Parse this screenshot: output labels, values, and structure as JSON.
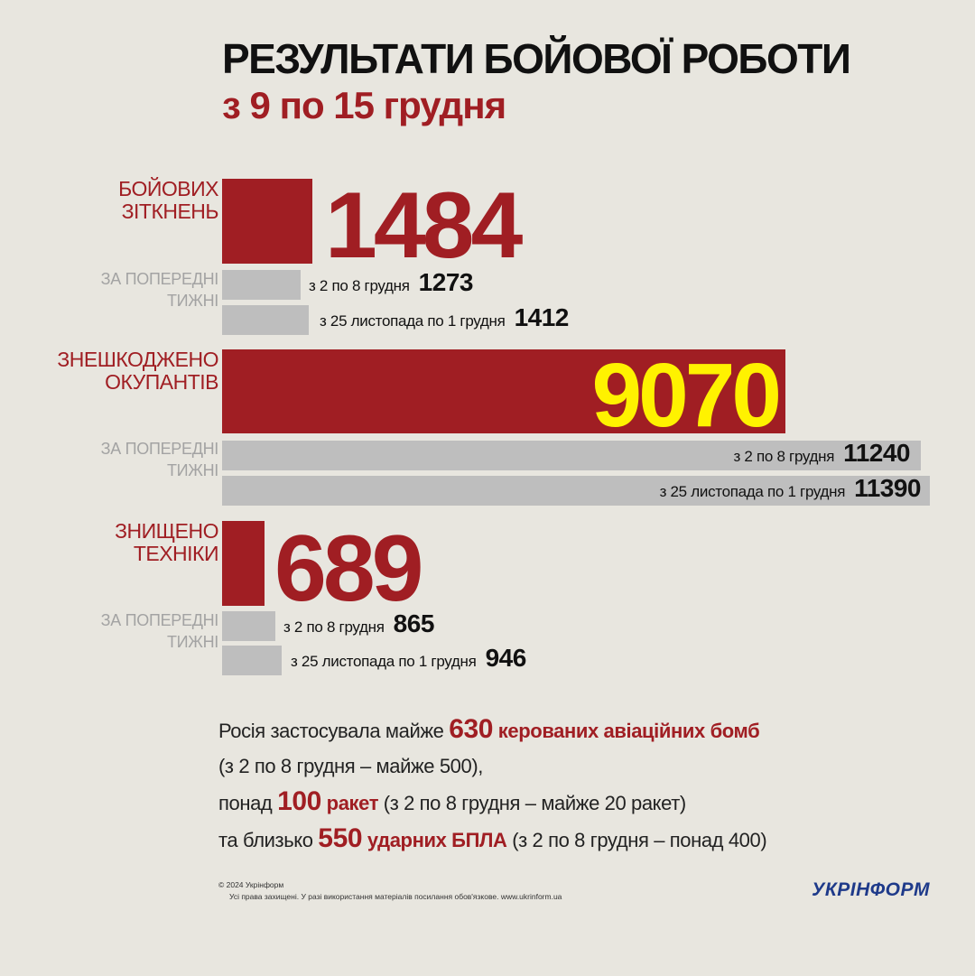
{
  "title": "РЕЗУЛЬТАТИ БОЙОВОЇ РОБОТИ",
  "subtitle": "з 9 по 15 грудня",
  "prev_label": [
    "ЗА ПОПЕРЕДНІ",
    "ТИЖНІ"
  ],
  "chart_data": {
    "type": "bar",
    "colors": {
      "current": "#a01e23",
      "previous": "#bebebe",
      "highlight": "#fff200"
    },
    "groups": [
      {
        "category": [
          "БОЙОВИХ",
          "ЗІТКНЕНЬ"
        ],
        "current": {
          "value": 1484
        },
        "previous": [
          {
            "period": "з 2 по 8 грудня",
            "value": 1273
          },
          {
            "period": "з 25 листопада по 1 грудня",
            "value": 1412
          }
        ]
      },
      {
        "category": [
          "ЗНЕШКОДЖЕНО",
          "ОКУПАНТІВ"
        ],
        "current": {
          "value": 9070
        },
        "previous": [
          {
            "period": "з 2 по 8 грудня",
            "value": 11240
          },
          {
            "period": "з 25 листопада по 1 грудня",
            "value": 11390
          }
        ]
      },
      {
        "category": [
          "ЗНИЩЕНО",
          "ТЕХНІКИ"
        ],
        "current": {
          "value": 689
        },
        "previous": [
          {
            "period": "з 2 по 8 грудня",
            "value": 865
          },
          {
            "period": "з 25 листопада по 1 грудня",
            "value": 946
          }
        ]
      }
    ]
  },
  "summary": {
    "l1": {
      "a": "Росія застосувала майже ",
      "num": "630",
      "b": " керованих авіаційних бомб"
    },
    "l2": {
      "a": "(з 2 по 8 грудня – майже 500),"
    },
    "l3": {
      "a": "понад ",
      "num": "100",
      "b": " ракет",
      "c": " (з 2 по 8 грудня – майже 20 ракет)"
    },
    "l4": {
      "a": "та близько ",
      "num": "550",
      "b": " ударних БПЛА",
      "c": " (з 2 по 8 грудня – понад 400)"
    }
  },
  "footer": {
    "copyright": "© 2024 Укрінформ",
    "rights": "Усі права захищені. У разі використання матеріалів посилання обов'язкове. www.ukrinform.ua",
    "logo": "УКРІНФОРМ"
  }
}
